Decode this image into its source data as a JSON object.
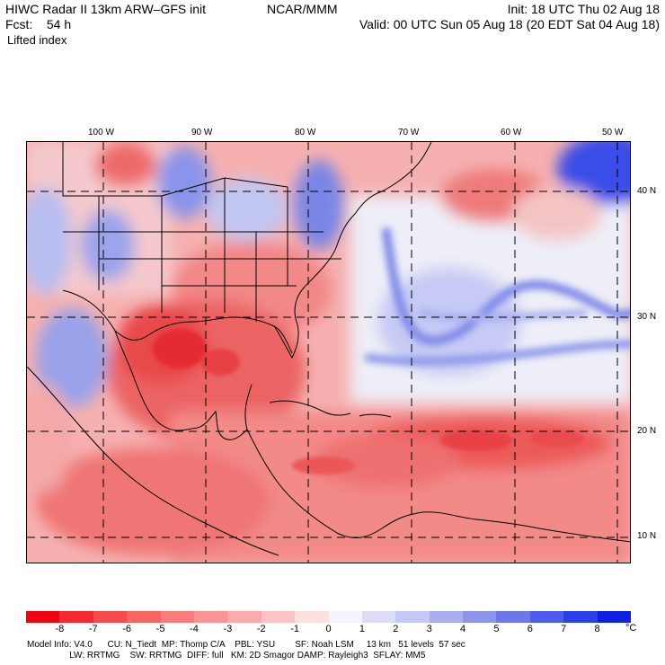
{
  "header": {
    "model_line": "HIWC Radar II 13km ARW–GFS init",
    "org": "NCAR/MMM",
    "fcst": "Fcst:    54 h",
    "init": "Init: 18 UTC Thu 02 Aug 18",
    "valid": "Valid: 00 UTC Sun 05 Aug 18 (20 EDT Sat 04 Aug 18)",
    "field": "Lifted index"
  },
  "map": {
    "lon_labels": [
      "100 W",
      "90 W",
      "80 W",
      "70 W",
      "60 W",
      "50 W"
    ],
    "lat_labels": [
      "40 N",
      "30 N",
      "20 N",
      "10 N"
    ],
    "lon_range": [
      -106,
      -49
    ],
    "lat_range": [
      8,
      43
    ],
    "colors": {
      "strong_neg": "#e8202a",
      "neg": "#f27a78",
      "weak_neg": "#f8c0be",
      "neutral": "#f2f2f8",
      "weak_pos": "#c8ccf2",
      "pos": "#7c86e8",
      "strong_pos": "#2438e6"
    }
  },
  "colorbar": {
    "ticks": [
      "-8",
      "-7",
      "-6",
      "-5",
      "-4",
      "-3",
      "-2",
      "-1",
      "0",
      "1",
      "2",
      "3",
      "4",
      "5",
      "6",
      "7",
      "8"
    ],
    "unit": "°C",
    "colors": [
      "#f00010",
      "#f42a30",
      "#f64a4c",
      "#f76464",
      "#f97c7c",
      "#fa9494",
      "#fbabab",
      "#fcc4c4",
      "#fde0e0",
      "#f4f4fc",
      "#dcdcf8",
      "#c4c8f4",
      "#a8aef0",
      "#8c94ec",
      "#6c78e8",
      "#4c5ce8",
      "#2a40e6",
      "#1020e0"
    ]
  },
  "footer": {
    "line1": "Model Info: V4.0      CU: N_Tiedt  MP: Thomp C/A    PBL: YSU        SF: Noah LSM     13 km   51 levels  57 sec",
    "line2": "                 LW: RRTMG    SW: RRTMG  DIFF: full   KM: 2D Smagor DAMP: Rayleigh3  SFLAY: MM5"
  }
}
